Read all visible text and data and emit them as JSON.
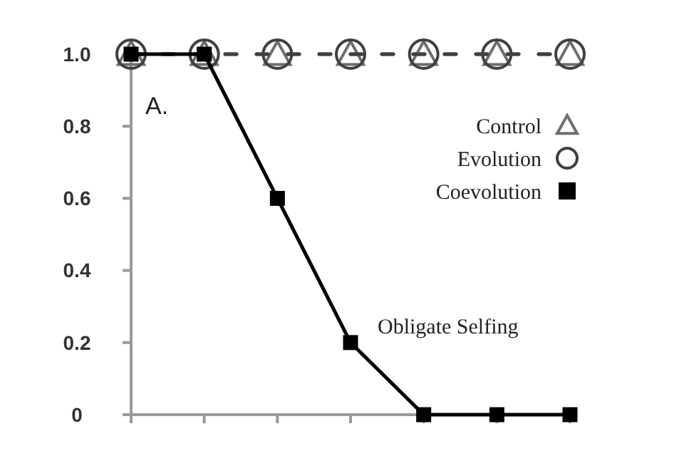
{
  "chart_data": {
    "type": "line",
    "categories": [
      null,
      null,
      null,
      null,
      null,
      null,
      null
    ],
    "ylim": [
      0,
      1
    ],
    "yticks": [
      0,
      0.2,
      0.4,
      0.6,
      0.8,
      {
        "value": 1,
        "label": "1.0"
      }
    ],
    "grid": false,
    "legend": "top right",
    "annotations": [
      "A.",
      "Obligate Selfing"
    ],
    "series": [
      {
        "name": "Control",
        "color": "#6e6e6e",
        "values": [
          1,
          1,
          1,
          1,
          1,
          1,
          1
        ],
        "marker": "triangle",
        "line_style": "dashed"
      },
      {
        "name": "Evolution",
        "color": "#404040",
        "values": [
          1,
          1,
          1,
          1,
          1,
          1,
          1
        ],
        "marker": "circle",
        "line_style": "dashed"
      },
      {
        "name": "Coevolution",
        "color": "#000000",
        "values": [
          1,
          1,
          0.6,
          0.2,
          0,
          0,
          0
        ],
        "marker": "square",
        "line_style": "solid"
      }
    ]
  }
}
